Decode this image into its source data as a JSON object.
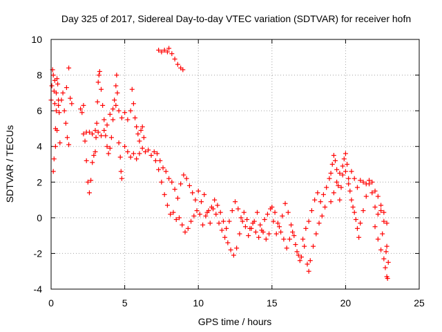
{
  "chart_data": {
    "type": "scatter",
    "title": "Day 325 of 2017, Sidereal Day-to-day VTEC variation (SDTVAR) for receiver hofn",
    "xlabel": "GPS time / hours",
    "ylabel": "SDTVAR / TECUs",
    "xlim": [
      0,
      25
    ],
    "ylim": [
      -4,
      10
    ],
    "xticks": [
      "0",
      "5",
      "10",
      "15",
      "20",
      "25"
    ],
    "yticks": [
      "-4",
      "-2",
      "0",
      "2",
      "4",
      "6",
      "8",
      "10"
    ],
    "grid": true,
    "marker": "+",
    "series_color": "#ff0000",
    "series": [
      {
        "name": "SDTVAR",
        "points": [
          [
            0.0,
            6.6
          ],
          [
            0.05,
            7.4
          ],
          [
            0.1,
            8.3
          ],
          [
            0.15,
            8.0
          ],
          [
            0.2,
            7.1
          ],
          [
            0.25,
            6.4
          ],
          [
            0.3,
            5.0
          ],
          [
            0.35,
            6.0
          ],
          [
            0.4,
            7.8
          ],
          [
            0.45,
            7.5
          ],
          [
            0.5,
            6.6
          ],
          [
            0.55,
            5.9
          ],
          [
            0.6,
            4.2
          ],
          [
            0.7,
            6.6
          ],
          [
            0.8,
            7.0
          ],
          [
            0.9,
            6.0
          ],
          [
            1.0,
            5.3
          ],
          [
            1.1,
            4.5
          ],
          [
            1.2,
            4.1
          ],
          [
            1.05,
            7.3
          ],
          [
            0.25,
            7.7
          ],
          [
            0.35,
            7.0
          ],
          [
            0.15,
            2.6
          ],
          [
            0.2,
            3.3
          ],
          [
            0.3,
            4.0
          ],
          [
            0.4,
            4.9
          ],
          [
            0.5,
            6.3
          ],
          [
            1.2,
            8.4
          ],
          [
            1.3,
            6.7
          ],
          [
            1.4,
            6.4
          ],
          [
            2.0,
            6.1
          ],
          [
            2.1,
            5.9
          ],
          [
            2.2,
            6.3
          ],
          [
            2.3,
            4.3
          ],
          [
            2.4,
            3.2
          ],
          [
            2.5,
            2.0
          ],
          [
            2.6,
            1.4
          ],
          [
            2.7,
            2.1
          ],
          [
            2.8,
            3.1
          ],
          [
            2.9,
            3.5
          ],
          [
            3.0,
            3.7
          ],
          [
            3.05,
            4.5
          ],
          [
            3.1,
            5.3
          ],
          [
            3.15,
            6.5
          ],
          [
            3.2,
            7.6
          ],
          [
            3.25,
            8.0
          ],
          [
            3.3,
            8.2
          ],
          [
            3.4,
            7.2
          ],
          [
            3.5,
            6.3
          ],
          [
            3.6,
            5.5
          ],
          [
            3.7,
            4.6
          ],
          [
            3.8,
            4.0
          ],
          [
            3.9,
            3.6
          ],
          [
            4.0,
            3.9
          ],
          [
            4.1,
            4.5
          ],
          [
            4.2,
            5.5
          ],
          [
            4.3,
            6.6
          ],
          [
            4.4,
            7.4
          ],
          [
            4.45,
            8.0
          ],
          [
            4.5,
            7.0
          ],
          [
            4.6,
            4.2
          ],
          [
            4.7,
            3.4
          ],
          [
            4.8,
            2.2
          ],
          [
            4.75,
            2.6
          ],
          [
            2.2,
            4.7
          ],
          [
            2.4,
            4.8
          ],
          [
            2.6,
            4.8
          ],
          [
            2.8,
            4.7
          ],
          [
            3.0,
            4.9
          ],
          [
            3.2,
            4.8
          ],
          [
            3.4,
            4.6
          ],
          [
            3.6,
            4.9
          ],
          [
            3.8,
            5.2
          ],
          [
            4.0,
            5.8
          ],
          [
            4.2,
            6.1
          ],
          [
            4.4,
            6.3
          ],
          [
            4.6,
            6.0
          ],
          [
            4.8,
            5.6
          ],
          [
            5.0,
            5.9
          ],
          [
            5.2,
            5.5
          ],
          [
            5.4,
            6.0
          ],
          [
            5.5,
            7.2
          ],
          [
            5.6,
            6.4
          ],
          [
            5.7,
            5.6
          ],
          [
            5.8,
            5.1
          ],
          [
            5.9,
            4.7
          ],
          [
            6.0,
            4.3
          ],
          [
            6.1,
            4.9
          ],
          [
            6.2,
            5.1
          ],
          [
            6.3,
            4.5
          ],
          [
            5.0,
            4.0
          ],
          [
            5.2,
            3.7
          ],
          [
            5.4,
            3.4
          ],
          [
            5.6,
            3.6
          ],
          [
            5.8,
            3.3
          ],
          [
            6.0,
            3.6
          ],
          [
            6.2,
            3.9
          ],
          [
            6.4,
            3.7
          ],
          [
            6.6,
            3.8
          ],
          [
            6.8,
            3.5
          ],
          [
            7.0,
            3.7
          ],
          [
            7.2,
            3.6
          ],
          [
            7.4,
            3.2
          ],
          [
            7.6,
            2.8
          ],
          [
            7.8,
            2.6
          ],
          [
            8.0,
            2.2
          ],
          [
            8.2,
            2.0
          ],
          [
            8.4,
            1.6
          ],
          [
            8.6,
            1.1
          ],
          [
            8.8,
            1.9
          ],
          [
            9.0,
            2.4
          ],
          [
            9.2,
            2.2
          ],
          [
            9.4,
            1.8
          ],
          [
            9.6,
            1.4
          ],
          [
            9.8,
            1.0
          ],
          [
            10.0,
            1.5
          ],
          [
            10.2,
            0.9
          ],
          [
            10.4,
            1.3
          ],
          [
            10.6,
            0.3
          ],
          [
            10.8,
            -0.3
          ],
          [
            7.1,
            3.2
          ],
          [
            7.3,
            2.7
          ],
          [
            7.5,
            2.0
          ],
          [
            7.7,
            1.3
          ],
          [
            7.9,
            0.7
          ],
          [
            8.1,
            0.2
          ],
          [
            8.3,
            0.3
          ],
          [
            8.5,
            -0.1
          ],
          [
            8.7,
            0.0
          ],
          [
            8.9,
            -0.4
          ],
          [
            9.1,
            -0.8
          ],
          [
            9.3,
            -0.6
          ],
          [
            9.5,
            -0.2
          ],
          [
            9.7,
            0.1
          ],
          [
            9.9,
            0.4
          ],
          [
            10.1,
            0.2
          ],
          [
            10.3,
            -0.4
          ],
          [
            10.5,
            0.1
          ],
          [
            10.7,
            0.4
          ],
          [
            10.9,
            0.6
          ],
          [
            7.3,
            9.4
          ],
          [
            7.5,
            9.3
          ],
          [
            7.7,
            9.4
          ],
          [
            7.9,
            9.3
          ],
          [
            8.0,
            9.5
          ],
          [
            8.2,
            9.2
          ],
          [
            8.4,
            8.9
          ],
          [
            8.6,
            8.6
          ],
          [
            8.8,
            8.4
          ],
          [
            8.95,
            8.3
          ],
          [
            11.0,
            0.5
          ],
          [
            11.2,
            0.2
          ],
          [
            11.4,
            -0.3
          ],
          [
            11.6,
            -0.7
          ],
          [
            11.8,
            -1.1
          ],
          [
            12.0,
            -1.4
          ],
          [
            12.2,
            -1.8
          ],
          [
            12.4,
            -2.1
          ],
          [
            12.6,
            -1.7
          ],
          [
            12.8,
            -0.9
          ],
          [
            11.1,
            1.0
          ],
          [
            11.3,
            0.7
          ],
          [
            11.5,
            0.3
          ],
          [
            11.7,
            -0.2
          ],
          [
            11.9,
            -0.6
          ],
          [
            12.1,
            -0.2
          ],
          [
            12.3,
            0.4
          ],
          [
            12.5,
            0.9
          ],
          [
            12.7,
            0.5
          ],
          [
            12.9,
            0.0
          ],
          [
            13.0,
            -0.2
          ],
          [
            13.2,
            -0.5
          ],
          [
            13.4,
            -1.0
          ],
          [
            13.6,
            -0.6
          ],
          [
            13.8,
            -0.2
          ],
          [
            14.0,
            0.3
          ],
          [
            14.2,
            -0.4
          ],
          [
            14.4,
            -0.8
          ],
          [
            14.6,
            -1.2
          ],
          [
            14.8,
            -0.9
          ],
          [
            13.1,
            0.3
          ],
          [
            13.3,
            -0.1
          ],
          [
            13.5,
            -0.6
          ],
          [
            13.7,
            -0.3
          ],
          [
            13.9,
            -0.8
          ],
          [
            14.1,
            -1.1
          ],
          [
            14.3,
            -0.7
          ],
          [
            14.5,
            -0.1
          ],
          [
            14.7,
            0.2
          ],
          [
            14.9,
            0.5
          ],
          [
            15.0,
            0.6
          ],
          [
            15.2,
            0.3
          ],
          [
            15.4,
            -0.3
          ],
          [
            15.6,
            -0.8
          ],
          [
            15.8,
            -1.2
          ],
          [
            16.0,
            -1.7
          ],
          [
            16.2,
            -1.2
          ],
          [
            16.4,
            -0.8
          ],
          [
            16.6,
            -1.5
          ],
          [
            16.8,
            -2.1
          ],
          [
            15.1,
            -0.2
          ],
          [
            15.3,
            -0.9
          ],
          [
            15.5,
            -0.5
          ],
          [
            15.7,
            0.1
          ],
          [
            15.9,
            0.8
          ],
          [
            16.1,
            0.3
          ],
          [
            16.3,
            -0.4
          ],
          [
            16.5,
            -1.0
          ],
          [
            16.7,
            -1.9
          ],
          [
            16.9,
            -2.4
          ],
          [
            17.0,
            -2.2
          ],
          [
            17.2,
            -1.6
          ],
          [
            17.4,
            -2.6
          ],
          [
            17.5,
            -3.0
          ],
          [
            17.6,
            -2.4
          ],
          [
            17.8,
            -1.6
          ],
          [
            18.0,
            -0.9
          ],
          [
            18.2,
            -0.3
          ],
          [
            18.4,
            0.1
          ],
          [
            18.6,
            0.6
          ],
          [
            17.1,
            -1.2
          ],
          [
            17.3,
            -0.6
          ],
          [
            17.5,
            -0.2
          ],
          [
            17.7,
            0.4
          ],
          [
            17.9,
            1.0
          ],
          [
            18.1,
            1.4
          ],
          [
            18.3,
            0.9
          ],
          [
            18.5,
            1.3
          ],
          [
            18.7,
            1.7
          ],
          [
            18.9,
            2.2
          ],
          [
            19.0,
            2.5
          ],
          [
            19.1,
            3.0
          ],
          [
            19.2,
            3.5
          ],
          [
            19.3,
            3.2
          ],
          [
            19.4,
            2.7
          ],
          [
            19.5,
            1.8
          ],
          [
            19.6,
            1.0
          ],
          [
            19.7,
            1.7
          ],
          [
            19.8,
            2.4
          ],
          [
            19.9,
            3.3
          ],
          [
            20.0,
            3.6
          ],
          [
            20.1,
            3.0
          ],
          [
            20.2,
            2.2
          ],
          [
            20.3,
            1.5
          ],
          [
            20.4,
            1.0
          ],
          [
            20.5,
            0.6
          ],
          [
            20.6,
            0.3
          ],
          [
            20.7,
            -0.1
          ],
          [
            20.8,
            -0.6
          ],
          [
            20.9,
            -1.1
          ],
          [
            19.0,
            0.9
          ],
          [
            19.2,
            1.4
          ],
          [
            19.4,
            2.0
          ],
          [
            19.6,
            2.5
          ],
          [
            19.8,
            2.9
          ],
          [
            20.0,
            2.6
          ],
          [
            20.2,
            1.9
          ],
          [
            20.4,
            2.6
          ],
          [
            20.6,
            2.2
          ],
          [
            20.8,
            1.7
          ],
          [
            21.0,
            -0.3
          ],
          [
            21.2,
            0.4
          ],
          [
            21.4,
            1.2
          ],
          [
            21.6,
            1.9
          ],
          [
            21.8,
            1.4
          ],
          [
            22.0,
            0.6
          ],
          [
            22.2,
            0.2
          ],
          [
            22.4,
            0.7
          ],
          [
            22.6,
            0.3
          ],
          [
            22.8,
            -0.3
          ],
          [
            21.0,
            2.1
          ],
          [
            21.2,
            2.0
          ],
          [
            21.4,
            1.9
          ],
          [
            21.6,
            2.1
          ],
          [
            21.8,
            2.0
          ],
          [
            22.0,
            1.5
          ],
          [
            22.2,
            1.2
          ],
          [
            22.4,
            0.4
          ],
          [
            22.6,
            -0.2
          ],
          [
            22.8,
            -1.6
          ],
          [
            22.0,
            -0.5
          ],
          [
            22.2,
            -1.2
          ],
          [
            22.4,
            -1.8
          ],
          [
            22.6,
            -2.3
          ],
          [
            22.7,
            -2.8
          ],
          [
            22.8,
            -3.3
          ],
          [
            22.85,
            -3.4
          ],
          [
            22.9,
            -2.5
          ],
          [
            22.75,
            -1.9
          ],
          [
            22.5,
            -0.9
          ]
        ]
      }
    ]
  }
}
